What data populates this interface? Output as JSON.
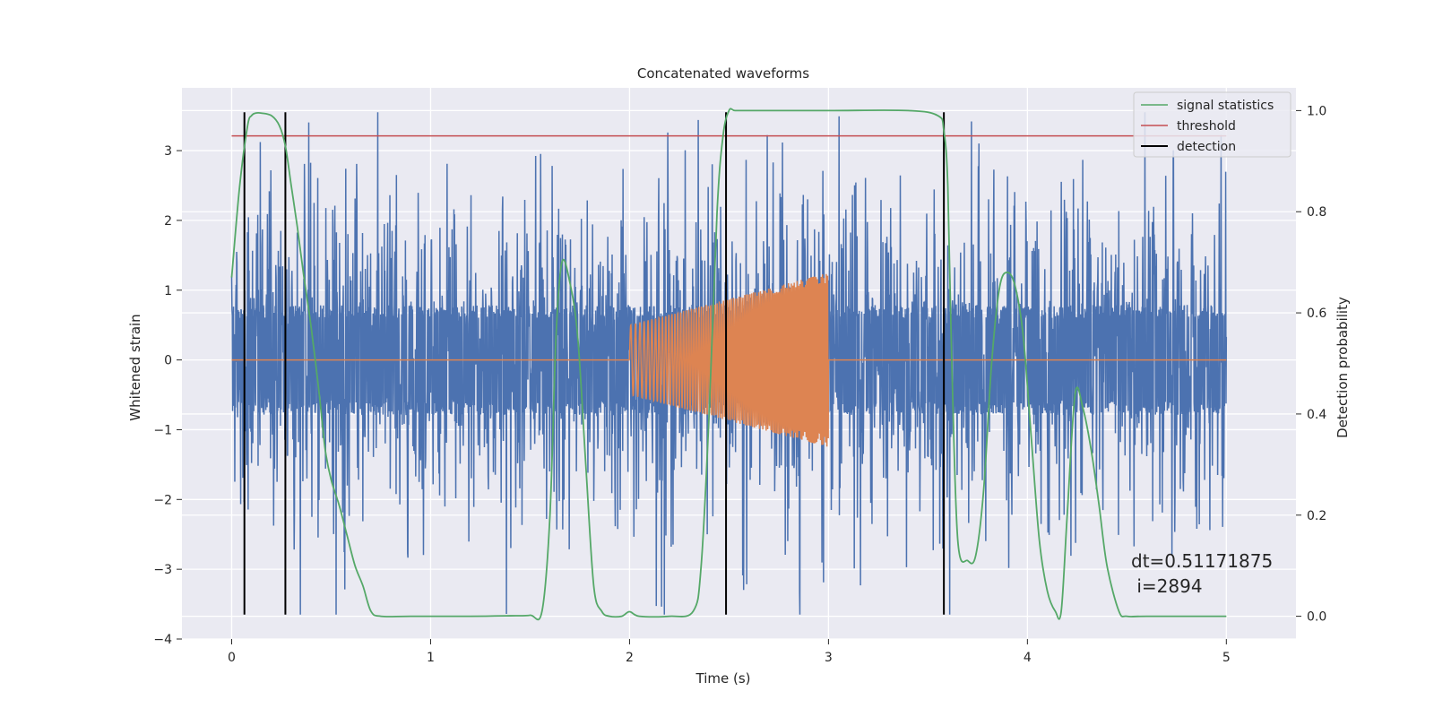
{
  "chart_data": {
    "type": "line",
    "title": "Concatenated waveforms",
    "xlabel": "Time (s)",
    "ylabel": "Whitened strain",
    "y2label": "Detection probability",
    "xlim": [
      -0.25,
      5.35
    ],
    "ylim": [
      -4.0,
      3.9
    ],
    "y2lim": [
      -0.045,
      1.045
    ],
    "xticks": [
      0,
      1,
      2,
      3,
      4,
      5
    ],
    "yticks": [
      -4,
      -3,
      -2,
      -1,
      0,
      1,
      2,
      3
    ],
    "y2ticks": [
      0.0,
      0.2,
      0.4,
      0.6,
      0.8,
      1.0
    ],
    "x_tick_labels": [
      "0",
      "1",
      "2",
      "3",
      "4",
      "5"
    ],
    "y_tick_labels": [
      "−4",
      "−3",
      "−2",
      "−1",
      "0",
      "1",
      "2",
      "3"
    ],
    "y2_tick_labels": [
      "0.0",
      "0.2",
      "0.4",
      "0.6",
      "0.8",
      "1.0"
    ],
    "grid": true,
    "legend_position": "top-right",
    "legend": [
      "signal statistics",
      "threshold",
      "detection"
    ],
    "colors": {
      "strain": "#4c72b0",
      "template": "#dd8452",
      "signal_statistics": "#55a868",
      "threshold": "#c44e52",
      "detection": "#000000",
      "axes_bg": "#eaeaf2",
      "grid": "#ffffff"
    },
    "strain": {
      "x_range": [
        0,
        5
      ],
      "core_amplitude": 0.75,
      "peak_amplitude_range": [
        -3.65,
        3.55
      ]
    },
    "template": {
      "x_start": 2.0,
      "x_end": 3.0,
      "start_amplitude": 0.5,
      "end_amplitude": 1.25
    },
    "series": [
      {
        "name": "signal statistics",
        "axis": "right",
        "x": [
          0.0,
          0.04,
          0.08,
          0.1,
          0.12,
          0.15,
          0.2,
          0.24,
          0.27,
          0.3,
          0.33,
          0.36,
          0.4,
          0.44,
          0.47,
          0.5,
          0.54,
          0.58,
          0.62,
          0.66,
          0.7,
          0.75,
          0.9,
          1.2,
          1.4,
          1.5,
          1.56,
          1.6,
          1.63,
          1.66,
          1.7,
          1.74,
          1.78,
          1.82,
          1.86,
          1.9,
          1.96,
          2.0,
          2.05,
          2.2,
          2.32,
          2.36,
          2.4,
          2.44,
          2.47,
          2.5,
          2.53,
          2.6,
          3.0,
          3.4,
          3.55,
          3.58,
          3.6,
          3.62,
          3.65,
          3.7,
          3.74,
          3.78,
          3.82,
          3.86,
          3.9,
          3.94,
          3.98,
          4.02,
          4.06,
          4.1,
          4.14,
          4.17,
          4.2,
          4.24,
          4.28,
          4.32,
          4.36,
          4.4,
          4.46,
          4.5,
          4.6,
          5.0
        ],
        "values": [
          0.67,
          0.85,
          0.97,
          0.99,
          0.995,
          0.995,
          0.99,
          0.97,
          0.93,
          0.85,
          0.77,
          0.68,
          0.57,
          0.44,
          0.33,
          0.27,
          0.22,
          0.16,
          0.1,
          0.06,
          0.01,
          0.0,
          0.0,
          0.0,
          0.001,
          0.002,
          0.01,
          0.2,
          0.55,
          0.7,
          0.66,
          0.55,
          0.3,
          0.06,
          0.01,
          0.0,
          0.0,
          0.009,
          0.0,
          0.0,
          0.01,
          0.1,
          0.4,
          0.8,
          0.95,
          1.0,
          1.0,
          1.0,
          1.0,
          1.0,
          0.99,
          0.96,
          0.85,
          0.5,
          0.15,
          0.11,
          0.12,
          0.25,
          0.5,
          0.65,
          0.68,
          0.65,
          0.55,
          0.35,
          0.15,
          0.05,
          0.01,
          0.01,
          0.2,
          0.44,
          0.41,
          0.33,
          0.22,
          0.1,
          0.01,
          0.0,
          0.0,
          0.0
        ]
      },
      {
        "name": "threshold",
        "axis": "right",
        "x": [
          0.0,
          5.0
        ],
        "values": [
          0.95,
          0.95
        ]
      },
      {
        "name": "detection",
        "axis": "left",
        "x": [
          0.064,
          0.27,
          2.485,
          3.58
        ],
        "y_range": [
          -3.65,
          3.55
        ]
      }
    ],
    "annotation": {
      "line1": "dt=0.51171875",
      "line2": " i=2894"
    }
  }
}
